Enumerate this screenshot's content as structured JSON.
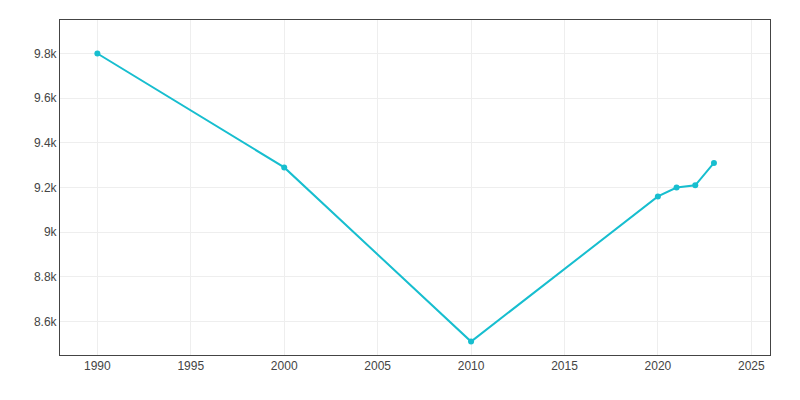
{
  "chart_data": {
    "type": "line",
    "x": [
      1990,
      2000,
      2010,
      2020,
      2021,
      2022,
      2023
    ],
    "values": [
      9800,
      9290,
      8510,
      9160,
      9200,
      9210,
      9310
    ],
    "color": "#17becf",
    "marker": "circle",
    "xlim": [
      1988,
      2026
    ],
    "xticks": [
      1990,
      1995,
      2000,
      2005,
      2010,
      2015,
      2020,
      2025
    ],
    "ylim": [
      8450,
      9950
    ],
    "yticks": [
      {
        "value": 8600,
        "label": "8.6k"
      },
      {
        "value": 8800,
        "label": "8.8k"
      },
      {
        "value": 9000,
        "label": "9k"
      },
      {
        "value": 9200,
        "label": "9.2k"
      },
      {
        "value": 9400,
        "label": "9.4k"
      },
      {
        "value": 9600,
        "label": "9.6k"
      },
      {
        "value": 9800,
        "label": "9.8k"
      }
    ],
    "grid": true
  }
}
